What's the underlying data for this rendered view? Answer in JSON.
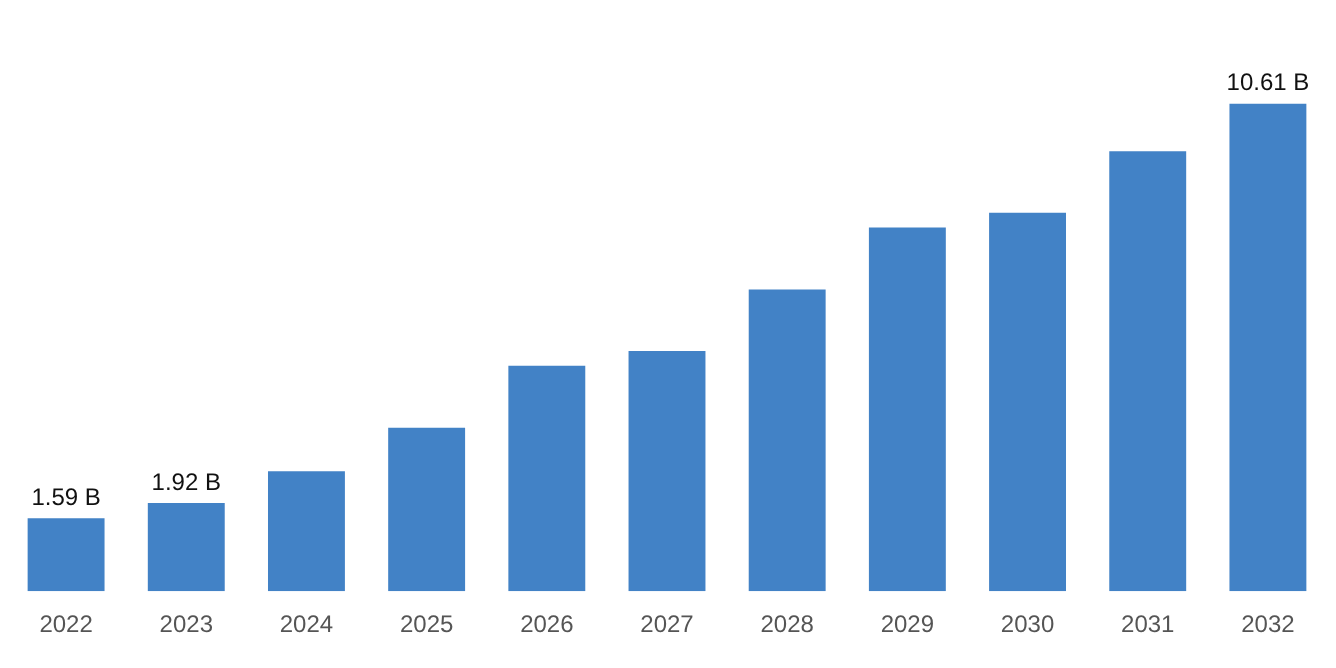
{
  "chart_data": {
    "type": "bar",
    "categories": [
      "2022",
      "2023",
      "2024",
      "2025",
      "2026",
      "2027",
      "2028",
      "2029",
      "2030",
      "2031",
      "2032"
    ],
    "values": [
      1.59,
      1.92,
      2.61,
      3.56,
      4.91,
      5.23,
      6.57,
      7.92,
      8.24,
      9.58,
      10.61
    ],
    "value_labels": [
      "1.59 B",
      "1.92 B",
      null,
      null,
      null,
      null,
      null,
      null,
      null,
      null,
      "10.61 B"
    ],
    "color": "#4282c6",
    "grid": false,
    "legend": false,
    "tick_labels": "x"
  }
}
